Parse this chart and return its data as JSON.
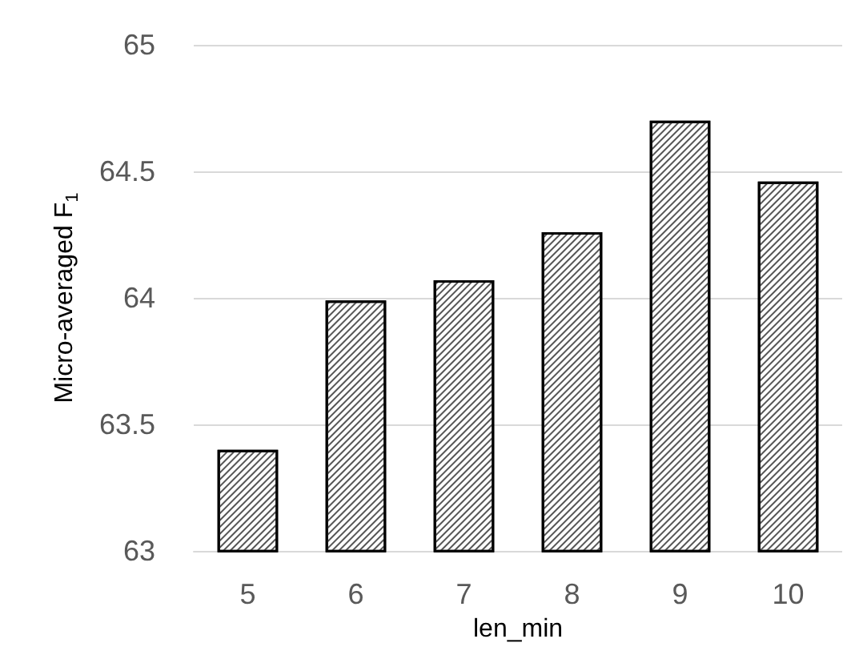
{
  "chart_data": {
    "type": "bar",
    "xlabel": "len_min",
    "ylabel": "Micro-averaged F$_{1}$",
    "categories": [
      "5",
      "6",
      "7",
      "8",
      "9",
      "10"
    ],
    "values": [
      63.4,
      63.99,
      64.07,
      64.26,
      64.7,
      64.46
    ],
    "color": "#ffffff",
    "ylim": [
      63,
      65
    ],
    "yticks": [
      63,
      63.5,
      64,
      64.5,
      65
    ],
    "grid": "y"
  }
}
